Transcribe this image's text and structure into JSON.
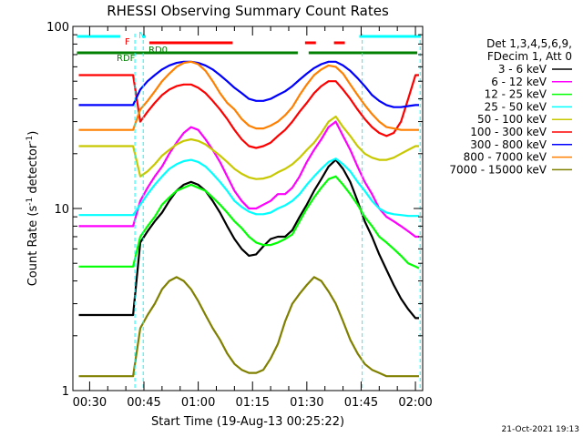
{
  "chart_data": {
    "type": "line",
    "title": "RHESSI Observing Summary Count Rates",
    "xlabel": "Start Time (19-Aug-13 00:25:22)",
    "ylabel": "Count Rate (s",
    "ylabel_sup": "-1",
    "ylabel_mid": " detector",
    "ylabel_end": ")",
    "y_scale": "log",
    "ylim": [
      1,
      100
    ],
    "xlim_minutes": [
      25.37,
      122.0
    ],
    "x_tick_labels": [
      "00:30",
      "00:45",
      "01:00",
      "01:15",
      "01:30",
      "01:45",
      "02:00"
    ],
    "x_tick_minutes": [
      30,
      45,
      60,
      75,
      90,
      105,
      120
    ],
    "y_tick_labels": [
      "1",
      "10",
      "100"
    ],
    "y_tick_values": [
      1,
      10,
      100
    ],
    "legend_header": [
      "Det 1,3,4,5,6,9,",
      "FDecim 1, Att 0"
    ],
    "legend_placement": "right",
    "x": [
      27,
      33,
      38,
      42,
      44,
      46,
      48,
      50,
      52,
      54,
      56,
      58,
      60,
      62,
      64,
      66,
      68,
      70,
      72,
      74,
      76,
      78,
      80,
      82,
      84,
      86,
      88,
      90,
      92,
      94,
      96,
      98,
      100,
      102,
      104,
      106,
      108,
      110,
      112,
      114,
      116,
      118,
      120,
      121
    ],
    "series": [
      {
        "name": "3 - 6 keV",
        "color": "#000000",
        "values": [
          2.6,
          2.6,
          2.6,
          2.6,
          6.5,
          7.5,
          8.5,
          9.5,
          11,
          12.5,
          13.5,
          14,
          13.5,
          12.5,
          11,
          9.5,
          8.0,
          6.8,
          6.0,
          5.5,
          5.6,
          6.2,
          6.8,
          7.0,
          7.0,
          7.6,
          9.0,
          10.5,
          12.5,
          14.5,
          17,
          18.5,
          16.5,
          14,
          11,
          8.5,
          7,
          5.6,
          4.6,
          3.8,
          3.2,
          2.8,
          2.5,
          2.5
        ]
      },
      {
        "name": "6 - 12 keV",
        "color": "#ff00ff",
        "values": [
          8,
          8,
          8,
          8,
          11,
          13,
          15,
          17,
          20,
          23,
          26,
          28,
          27,
          24,
          21,
          18,
          15,
          12.5,
          11,
          10,
          10,
          10.5,
          11,
          12,
          12,
          13,
          15,
          18,
          21,
          24,
          28,
          30,
          25,
          21,
          17,
          14,
          12,
          10,
          9,
          8.5,
          8,
          7.5,
          7,
          7
        ]
      },
      {
        "name": "12 - 25 keV",
        "color": "#00ff00",
        "values": [
          4.8,
          4.8,
          4.8,
          4.8,
          7,
          8,
          9,
          10.5,
          11.5,
          12.5,
          13,
          13.5,
          13,
          12.5,
          11.5,
          10.5,
          9.5,
          8.5,
          7.8,
          7,
          6.5,
          6.3,
          6.3,
          6.5,
          6.8,
          7.2,
          8.5,
          10,
          11.5,
          13,
          14.5,
          15,
          13.5,
          12,
          10.5,
          9,
          8,
          7,
          6.5,
          6,
          5.5,
          5,
          4.8,
          4.7
        ]
      },
      {
        "name": "25 - 50 keV",
        "color": "#00ffff",
        "values": [
          9.2,
          9.2,
          9.2,
          9.2,
          10.5,
          12,
          13.5,
          15,
          16.5,
          17.5,
          18.2,
          18.5,
          18,
          17,
          15.5,
          14,
          12.5,
          11,
          10.2,
          9.6,
          9.3,
          9.3,
          9.5,
          10,
          10.4,
          11,
          12,
          13.5,
          15,
          16.5,
          18,
          18.8,
          17.5,
          16,
          14,
          12.5,
          11,
          10,
          9.5,
          9.3,
          9.2,
          9.1,
          9.1,
          9.1
        ]
      },
      {
        "name": "50 - 100 keV",
        "color": "#c8c800",
        "values": [
          22,
          22,
          22,
          22,
          15,
          16,
          17.5,
          19.5,
          21,
          22.5,
          23.5,
          24,
          23.5,
          22.5,
          21,
          19.5,
          18,
          16.5,
          15.5,
          14.8,
          14.5,
          14.6,
          15,
          15.8,
          16.5,
          17.5,
          19,
          21,
          23,
          26,
          30,
          32,
          28,
          25,
          22,
          20,
          19,
          18.5,
          18.5,
          19,
          20,
          21,
          22,
          22
        ]
      },
      {
        "name": "100 - 300 keV",
        "color": "#ff0000",
        "values": [
          54,
          54,
          54,
          54,
          30,
          34,
          38,
          42,
          45,
          47,
          48,
          48,
          46,
          43,
          39,
          35,
          31,
          27,
          24,
          22,
          21.5,
          22,
          23,
          25,
          27,
          30,
          34,
          38,
          43,
          47,
          50,
          50,
          45,
          40,
          35,
          31,
          28,
          26,
          25,
          26,
          30,
          40,
          54,
          54
        ]
      },
      {
        "name": "300 - 800 keV",
        "color": "#0000ff",
        "values": [
          37,
          37,
          37,
          37,
          45,
          50,
          54,
          58,
          61,
          63,
          64,
          64,
          63,
          61,
          58,
          54,
          50,
          46,
          43,
          40,
          39,
          39,
          40,
          42,
          44,
          47,
          51,
          55,
          59,
          62,
          64,
          64,
          61,
          57,
          52,
          47,
          42,
          39,
          37,
          36,
          36,
          36.5,
          37,
          37
        ]
      },
      {
        "name": "800 - 7000 keV",
        "color": "#ff8000",
        "values": [
          27,
          27,
          27,
          27,
          35,
          39,
          44,
          50,
          55,
          60,
          63,
          64,
          62,
          57,
          50,
          43,
          38,
          35,
          31,
          28.5,
          27.5,
          27.5,
          28.5,
          30,
          32.5,
          36,
          42,
          48,
          54,
          58,
          61,
          60,
          55,
          48,
          42,
          37,
          33,
          30,
          28,
          27.5,
          27,
          27,
          27,
          27
        ]
      },
      {
        "name": "7000 - 15000 keV",
        "color": "#808000",
        "values": [
          1.2,
          1.2,
          1.2,
          1.2,
          2.2,
          2.6,
          3.0,
          3.6,
          4.0,
          4.2,
          4.0,
          3.6,
          3.1,
          2.6,
          2.2,
          1.9,
          1.6,
          1.4,
          1.3,
          1.25,
          1.25,
          1.3,
          1.5,
          1.8,
          2.4,
          3.0,
          3.4,
          3.8,
          4.2,
          4.0,
          3.5,
          3.0,
          2.4,
          1.9,
          1.6,
          1.4,
          1.3,
          1.25,
          1.2,
          1.2,
          1.2,
          1.2,
          1.2,
          1.2
        ]
      }
    ],
    "flag_bars": [
      {
        "label": "N",
        "color": "#00ffff",
        "segments": [
          [
            26.5,
            38.5
          ],
          [
            44.5,
            45.5
          ],
          [
            104.5,
            121.5
          ]
        ]
      },
      {
        "label": "F",
        "color": "#ff0000",
        "segments": [
          [
            46.5,
            69.5
          ],
          [
            89.5,
            92.5
          ],
          [
            97.5,
            100.5
          ]
        ]
      },
      {
        "label": "RD0",
        "color": "#008000",
        "segments": [
          [
            26.5,
            87.5
          ],
          [
            90.5,
            120.5
          ]
        ]
      },
      {
        "label": "RDF",
        "color": "#008000",
        "segments": []
      }
    ],
    "vertical_lines": [
      {
        "minutes": 42.5,
        "color": "#00ffff"
      },
      {
        "minutes": 44.8,
        "color": "#00ffff"
      },
      {
        "minutes": 105.3,
        "color": "#00ffff"
      },
      {
        "minutes": 121.3,
        "color": "#00ffff"
      }
    ]
  },
  "footer": {
    "date": "21-Oct-2021 19:13"
  },
  "colors": {
    "background": "#ffffff",
    "axes": "#000000"
  }
}
